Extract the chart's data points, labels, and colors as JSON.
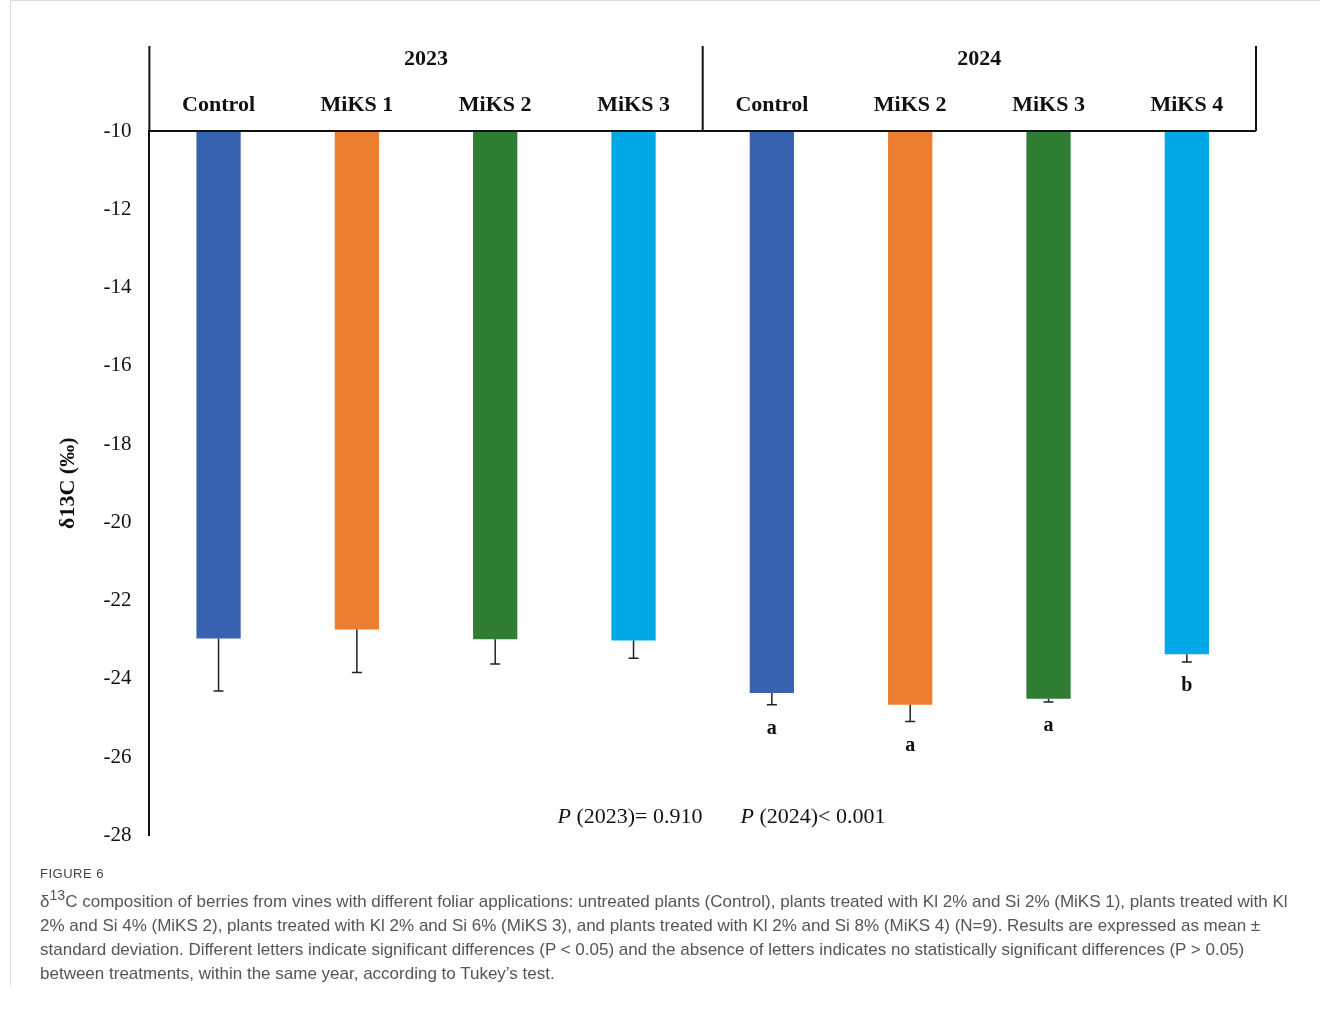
{
  "chart_data": {
    "type": "bar",
    "ylabel": "δ13C (‰)",
    "categories": [
      "Control",
      "MiKS 1",
      "MiKS 2",
      "MiKS 3",
      "Control",
      "MiKS 2",
      "MiKS 3",
      "MiKS 4"
    ],
    "values": [
      -22.97,
      -22.74,
      -22.99,
      -23.02,
      -24.36,
      -24.66,
      -24.51,
      -23.37
    ],
    "errors": [
      [
        -24.31,
        -22.97
      ],
      [
        -23.84,
        -22.74
      ],
      [
        -23.62,
        -22.99
      ],
      [
        -23.47,
        -23.02
      ],
      [
        -24.66,
        -24.36
      ],
      [
        -25.09,
        -24.66
      ],
      [
        -24.59,
        -24.51
      ],
      [
        -23.57,
        -23.37
      ]
    ],
    "colors": [
      "#3762b0",
      "#ed7d31",
      "#2e7d32",
      "#00a9e6",
      "#3762b0",
      "#ed7d31",
      "#2e7d32",
      "#00a9e6"
    ],
    "value_labels": [
      null,
      null,
      null,
      null,
      "a",
      "a",
      "a",
      "b"
    ],
    "ylim": [
      -28,
      -10
    ],
    "yticks": [
      -10,
      -12,
      -14,
      -16,
      -18,
      -20,
      -22,
      -24,
      -26,
      -28
    ],
    "grid": false,
    "legend": false,
    "annotations": [
      "2023",
      "2024",
      "P (2023)= 0.910",
      "P (2024)< 0.001",
      "FIGURE 6",
      "δ$^{13}$C composition of berries from vines with different foliar applications: untreated plants (Control), plants treated with Kl 2% and Si 2% (MiKS 1), plants treated with Kl 2% and Si 4% (MiKS 2), plants treated with Kl 2% and Si 6% (MiKS 3), and plants treated with Kl 2% and Si 8% (MiKS 4) (N=9). Results are expressed as mean ± standard deviation. Different letters indicate significant differences (P < 0.05) and the absence of letters indicates no statistically significant differences (P > 0.05) between treatments, within the same year, according to Tukey’s test."
    ]
  }
}
